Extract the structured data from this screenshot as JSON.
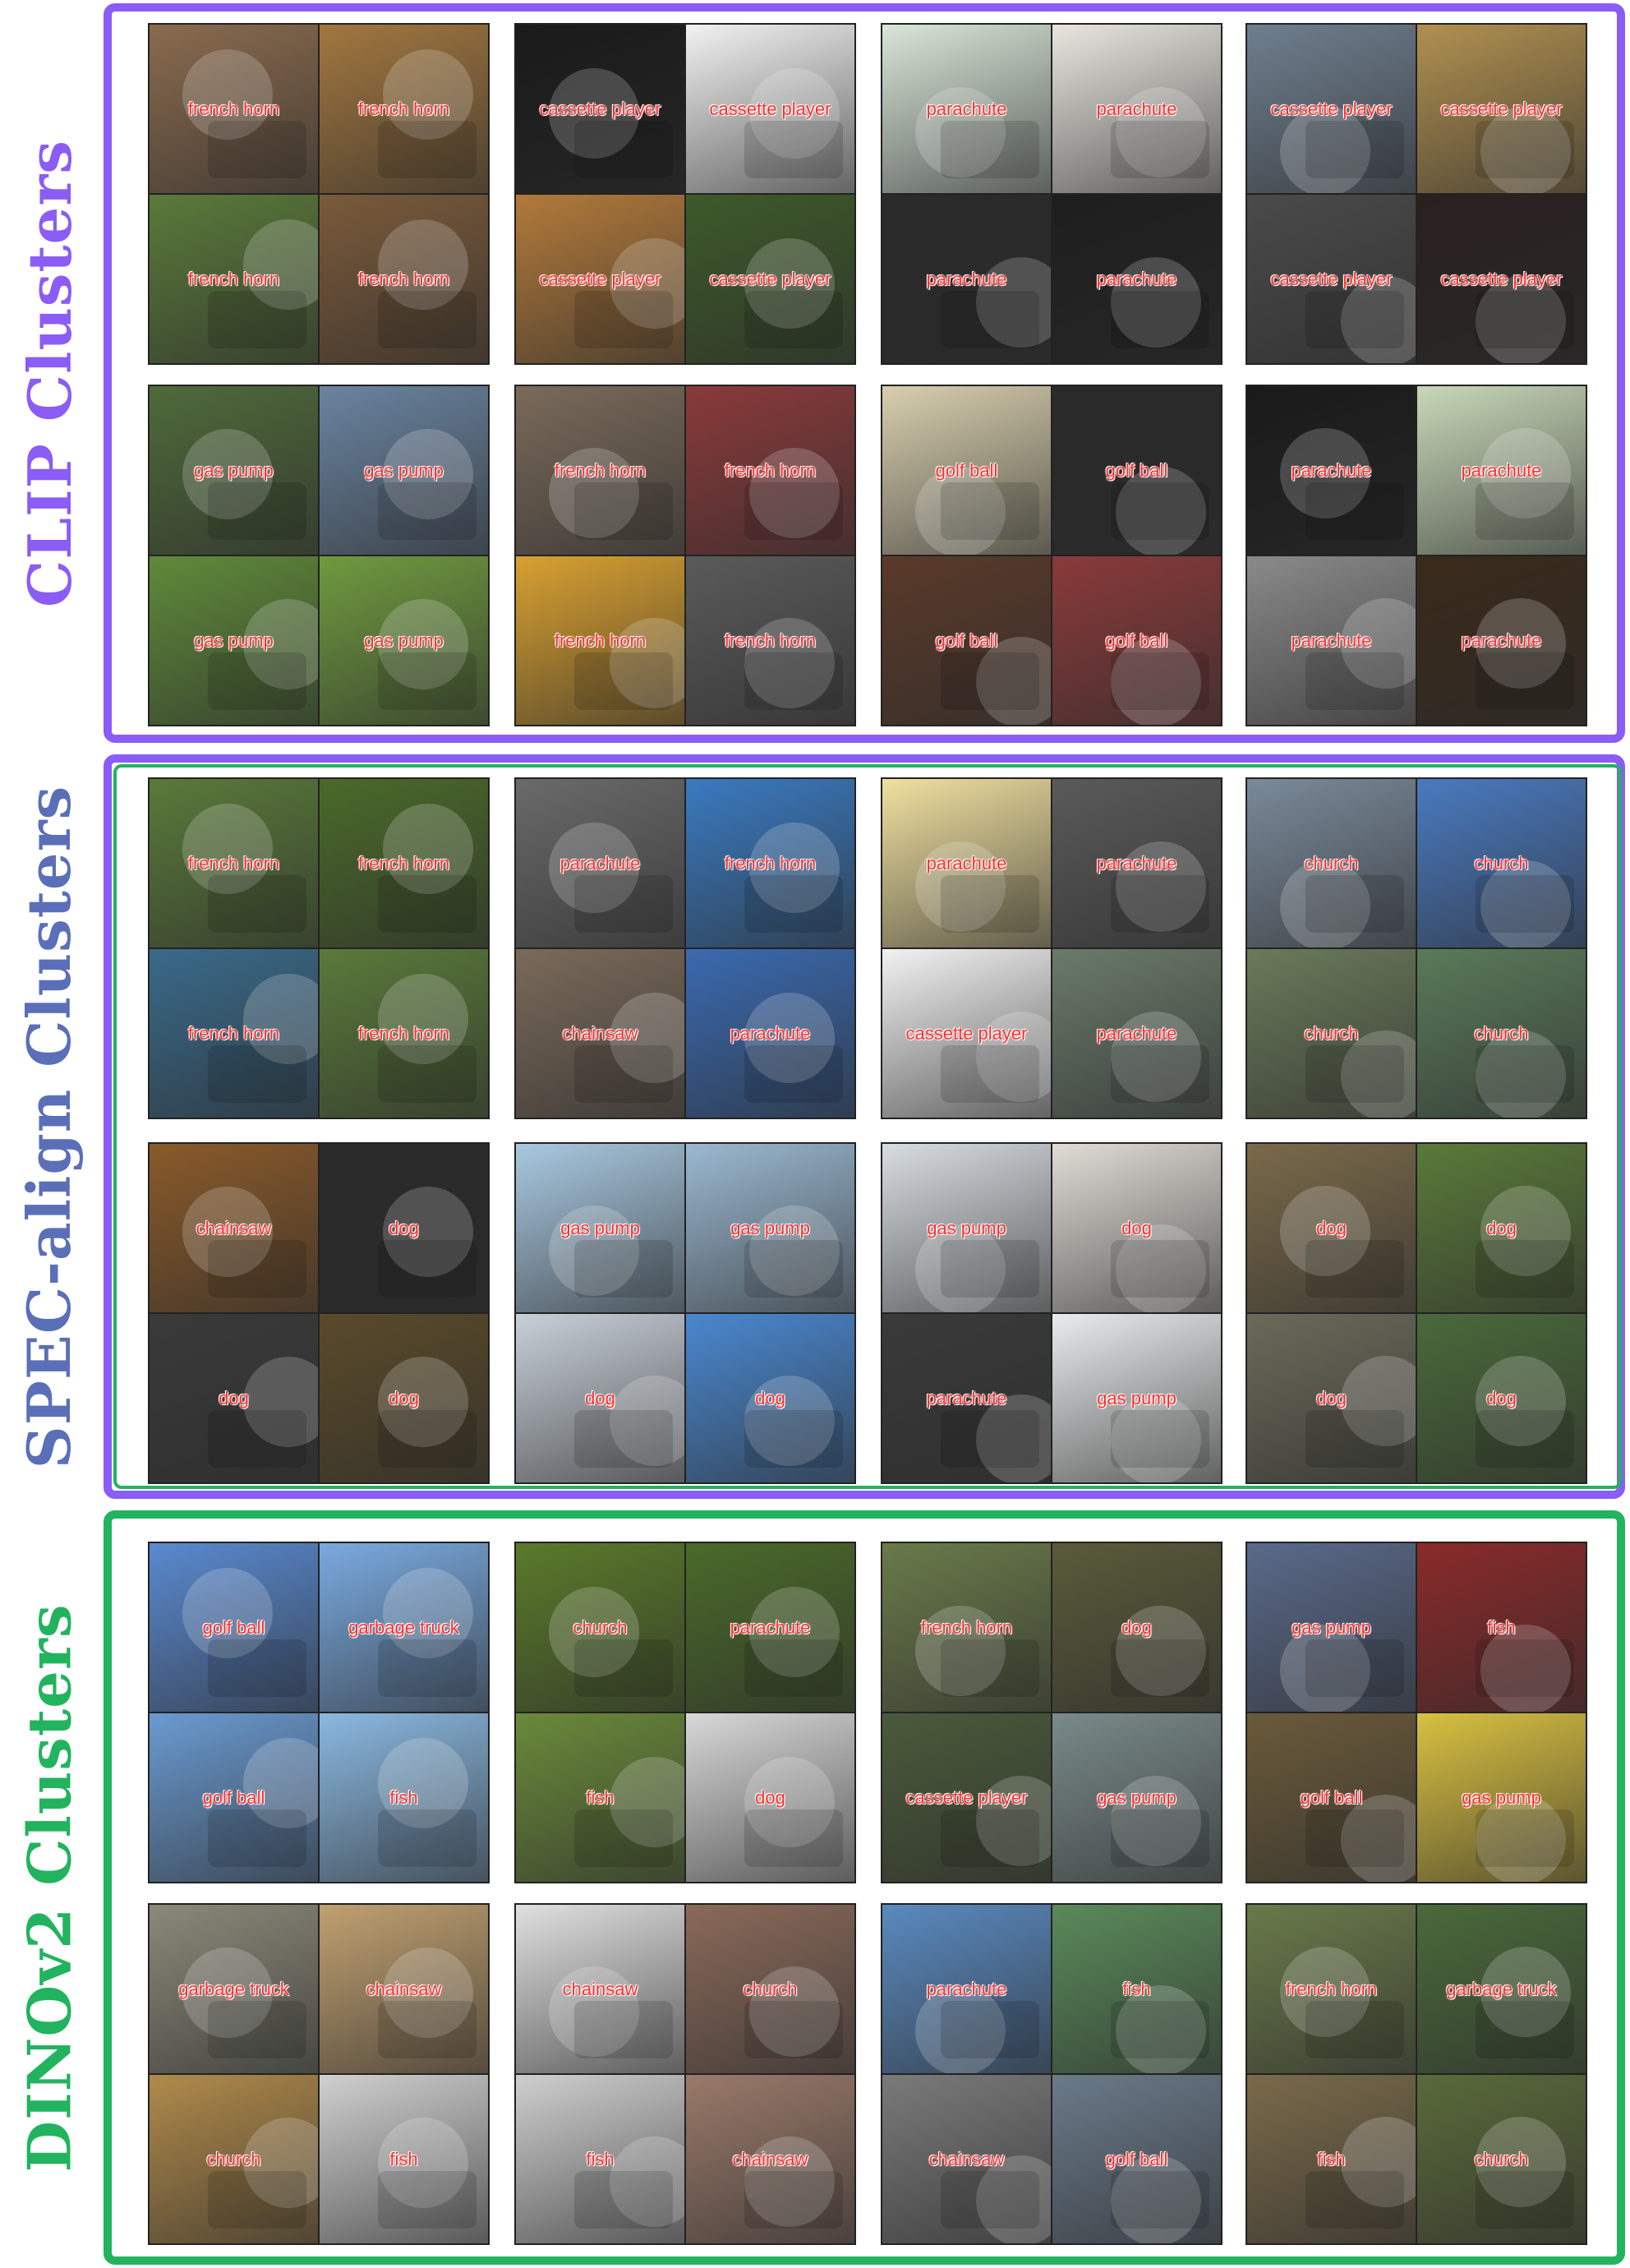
{
  "colors": {
    "clip": "#8b5cf6",
    "spec": "#5b6fb8",
    "dino": "#22b35e",
    "label": "#ff2b2b"
  },
  "sections": [
    {
      "id": "clip",
      "title": "CLIP Clusters",
      "clusters": [
        {
          "labels": [
            "french horn",
            "french horn",
            "french horn",
            "french horn"
          ],
          "tones": [
            "#8a6b4e",
            "#a2773f",
            "#5a7a3a",
            "#7a5a3a"
          ]
        },
        {
          "labels": [
            "cassette player",
            "cassette player",
            "cassette player",
            "cassette player"
          ],
          "tones": [
            "#1a1a1a",
            "#f2f2f2",
            "#b27a3a",
            "#3d5a2a"
          ]
        },
        {
          "labels": [
            "parachute",
            "parachute",
            "parachute",
            "parachute"
          ],
          "tones": [
            "#d8e6d8",
            "#e8e6df",
            "#2a2a2a",
            "#1e1e1e"
          ]
        },
        {
          "labels": [
            "cassette player",
            "cassette player",
            "cassette player",
            "cassette player"
          ],
          "tones": [
            "#6f7f8f",
            "#b09050",
            "#4a4a4a",
            "#2a2020"
          ]
        },
        {
          "labels": [
            "gas pump",
            "gas pump",
            "gas pump",
            "gas pump"
          ],
          "tones": [
            "#4f6a3a",
            "#6a84a0",
            "#5f8a3a",
            "#6f9a3f"
          ]
        },
        {
          "labels": [
            "french horn",
            "french horn",
            "french horn",
            "french horn"
          ],
          "tones": [
            "#7a6a5a",
            "#8a3a3a",
            "#d8a030",
            "#5a5a5a"
          ]
        },
        {
          "labels": [
            "golf ball",
            "golf ball",
            "golf ball",
            "golf ball"
          ],
          "tones": [
            "#d8cfae",
            "#2a2a2a",
            "#5a3a2a",
            "#8a3a3a"
          ]
        },
        {
          "labels": [
            "parachute",
            "parachute",
            "parachute",
            "parachute"
          ],
          "tones": [
            "#1a1a1a",
            "#c8d8b8",
            "#8a8a8a",
            "#3a2a1a"
          ]
        }
      ]
    },
    {
      "id": "spec",
      "title": "SPEC-align Clusters",
      "clusters": [
        {
          "labels": [
            "french horn",
            "french horn",
            "french horn",
            "french horn"
          ],
          "tones": [
            "#5a7a3a",
            "#4a6a2a",
            "#3a6a8a",
            "#5a7a3a"
          ]
        },
        {
          "labels": [
            "parachute",
            "french horn",
            "chainsaw",
            "parachute"
          ],
          "tones": [
            "#6a6a6a",
            "#3a7ac0",
            "#7a6a5a",
            "#3a6ab0"
          ]
        },
        {
          "labels": [
            "parachute",
            "parachute",
            "cassette player",
            "parachute"
          ],
          "tones": [
            "#f0e0a0",
            "#5a5a5a",
            "#f2f2f2",
            "#6a7a6a"
          ]
        },
        {
          "labels": [
            "church",
            "church",
            "church",
            "church"
          ],
          "tones": [
            "#7a8a9a",
            "#4a7ac0",
            "#6a7a5a",
            "#5a7a5a"
          ]
        },
        {
          "labels": [
            "chainsaw",
            "dog",
            "dog",
            "dog"
          ],
          "tones": [
            "#8a5a2a",
            "#2a2a2a",
            "#3a3a3a",
            "#5a4a2a"
          ]
        },
        {
          "labels": [
            "gas pump",
            "gas pump",
            "dog",
            "dog"
          ],
          "tones": [
            "#a8c8e0",
            "#9ab8d0",
            "#c8d0d8",
            "#4a88d0"
          ]
        },
        {
          "labels": [
            "gas pump",
            "dog",
            "parachute",
            "gas pump"
          ],
          "tones": [
            "#d8dde2",
            "#e0dcd6",
            "#3a3a3a",
            "#e8ecec"
          ]
        },
        {
          "labels": [
            "dog",
            "dog",
            "dog",
            "dog"
          ],
          "tones": [
            "#7a6a4a",
            "#5a7a3a",
            "#6a6a5a",
            "#4a6a3a"
          ]
        }
      ]
    },
    {
      "id": "dino",
      "title": "DINOv2 Clusters",
      "clusters": [
        {
          "labels": [
            "golf ball",
            "garbage truck",
            "golf ball",
            "fish"
          ],
          "tones": [
            "#5a8ad0",
            "#7aaae0",
            "#6a9ad0",
            "#8ab8e0"
          ]
        },
        {
          "labels": [
            "church",
            "parachute",
            "fish",
            "dog"
          ],
          "tones": [
            "#5a7a2a",
            "#4a6a2a",
            "#6a8a3a",
            "#d8d8d8"
          ]
        },
        {
          "labels": [
            "french horn",
            "dog",
            "cassette player",
            "gas pump"
          ],
          "tones": [
            "#6a7a4a",
            "#5a5a3a",
            "#4a5a3a",
            "#7a8a8a"
          ]
        },
        {
          "labels": [
            "gas pump",
            "fish",
            "golf ball",
            "gas pump"
          ],
          "tones": [
            "#5a6a8a",
            "#8a2a2a",
            "#6a5a3a",
            "#d8c040"
          ]
        },
        {
          "labels": [
            "garbage truck",
            "chainsaw",
            "church",
            "fish"
          ],
          "tones": [
            "#8a8a7a",
            "#c0a070",
            "#b08a4a",
            "#d0d0d0"
          ]
        },
        {
          "labels": [
            "chainsaw",
            "church",
            "fish",
            "chainsaw"
          ],
          "tones": [
            "#e0e0e0",
            "#8a6a5a",
            "#cfcfcf",
            "#9a7a6a"
          ]
        },
        {
          "labels": [
            "parachute",
            "fish",
            "chainsaw",
            "golf ball"
          ],
          "tones": [
            "#5a8ac0",
            "#5a8a5a",
            "#7a7a7a",
            "#6a7a8a"
          ]
        },
        {
          "labels": [
            "french horn",
            "garbage truck",
            "fish",
            "church"
          ],
          "tones": [
            "#6a7a4a",
            "#4a6a3a",
            "#7a6a4a",
            "#5a6a3a"
          ]
        }
      ]
    }
  ]
}
